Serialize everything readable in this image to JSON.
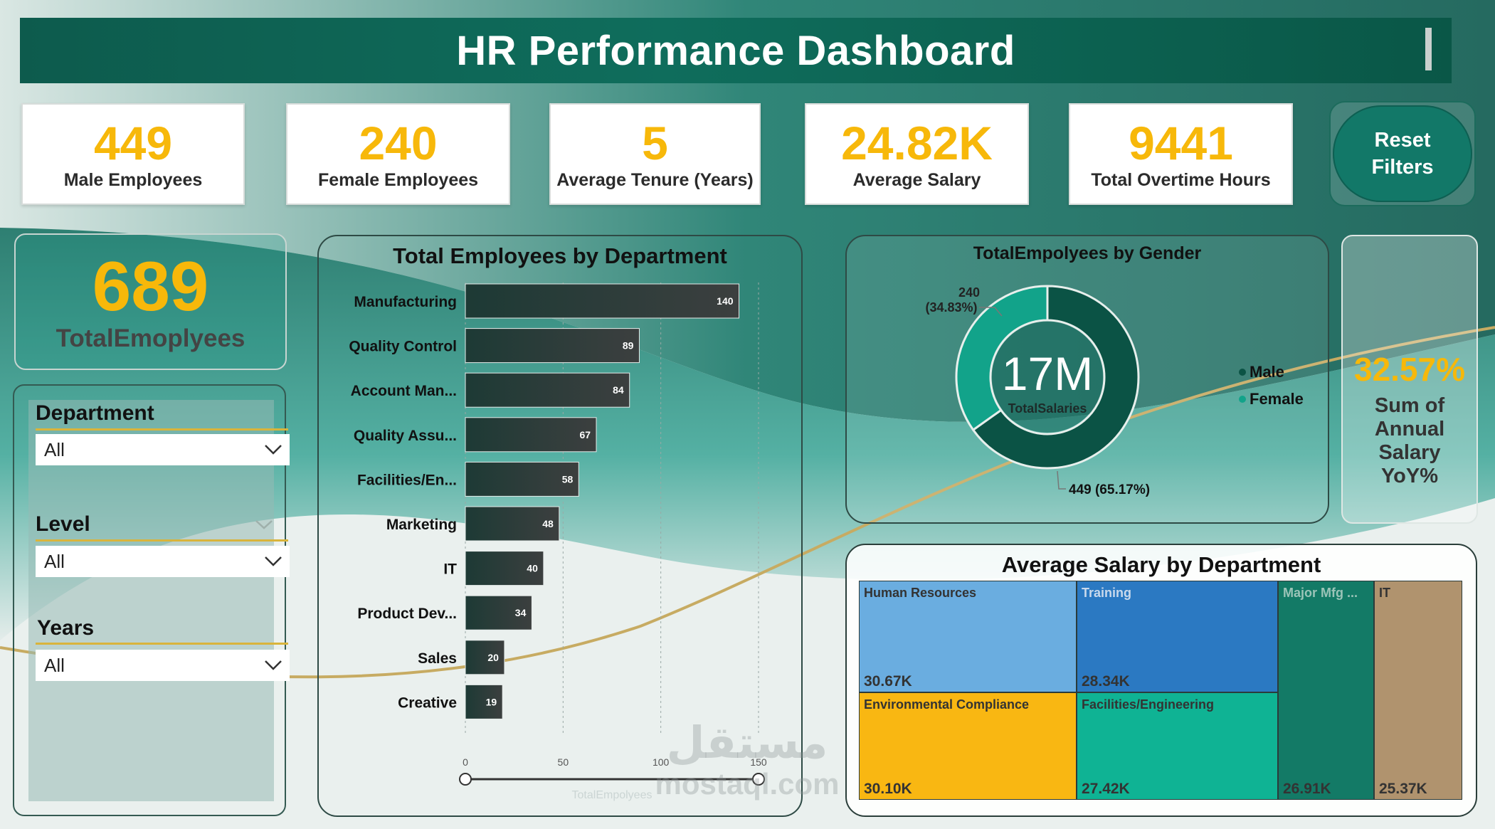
{
  "header": {
    "title": "HR Performance Dashboard"
  },
  "kpis": [
    {
      "value": "449",
      "label": "Male Employees"
    },
    {
      "value": "240",
      "label": "Female Employees"
    },
    {
      "value": "5",
      "label": "Average Tenure (Years)"
    },
    {
      "value": "24.82K",
      "label": "Average Salary"
    },
    {
      "value": "9441",
      "label": "Total Overtime Hours"
    }
  ],
  "reset_button": {
    "label_line1": "Reset",
    "label_line2": "Filters"
  },
  "total_employees": {
    "value": "689",
    "label": "TotalEmoplyees"
  },
  "slicers": [
    {
      "title": "Department",
      "selected": "All"
    },
    {
      "title": "Level",
      "selected": "All"
    },
    {
      "title": "Years",
      "selected": "All"
    }
  ],
  "yoy": {
    "value": "32.57%",
    "label": "Sum of Annual Salary YoY%"
  },
  "colors": {
    "accent": "#f7b80a",
    "teal_dark": "#0d5b4d",
    "male": "#0b5345",
    "female": "#12a38a"
  },
  "watermark": {
    "ar": "مستقل",
    "en": "mostaql.com"
  },
  "chart_data": [
    {
      "type": "bar",
      "orientation": "horizontal",
      "title": "Total Employees by Department",
      "categories": [
        "Manufacturing",
        "Quality Control",
        "Account Man...",
        "Quality Assu...",
        "Facilities/En...",
        "Marketing",
        "IT",
        "Product Dev...",
        "Sales",
        "Creative"
      ],
      "values": [
        140,
        89,
        84,
        67,
        58,
        48,
        40,
        34,
        20,
        19
      ],
      "xlim": [
        0,
        150
      ],
      "xticks": [
        "0",
        "50",
        "100",
        "150"
      ],
      "xlabel": "TotalEmpolyees",
      "grid": true
    },
    {
      "type": "pie",
      "donut": true,
      "title": "TotalEmpolyees by Gender",
      "center_value": "17M",
      "center_label": "TotalSalaries",
      "slices": [
        {
          "name": "Male",
          "value": 449,
          "label": "449 (65.17%)"
        },
        {
          "name": "Female",
          "value": 240,
          "label_line1": "240",
          "label_line2": "(34.83%)"
        }
      ],
      "legend": [
        "Male",
        "Female"
      ],
      "legend_position": "right"
    },
    {
      "type": "treemap",
      "title": "Average Salary by Department",
      "items": [
        {
          "name": "Human Resources",
          "value_label": "30.67K",
          "value": 30.67,
          "color": "#6aade0"
        },
        {
          "name": "Environmental Compliance",
          "value_label": "30.10K",
          "value": 30.1,
          "color": "#f9b712"
        },
        {
          "name": "Training",
          "value_label": "28.34K",
          "value": 28.34,
          "color": "#2b79c2"
        },
        {
          "name": "Facilities/Engineering",
          "value_label": "27.42K",
          "value": 27.42,
          "color": "#0fb394"
        },
        {
          "name": "Major Mfg ...",
          "value_label": "26.91K",
          "value": 26.91,
          "color": "#137a66"
        },
        {
          "name": "IT",
          "value_label": "25.37K",
          "value": 25.37,
          "color": "#b0936e"
        }
      ]
    }
  ]
}
